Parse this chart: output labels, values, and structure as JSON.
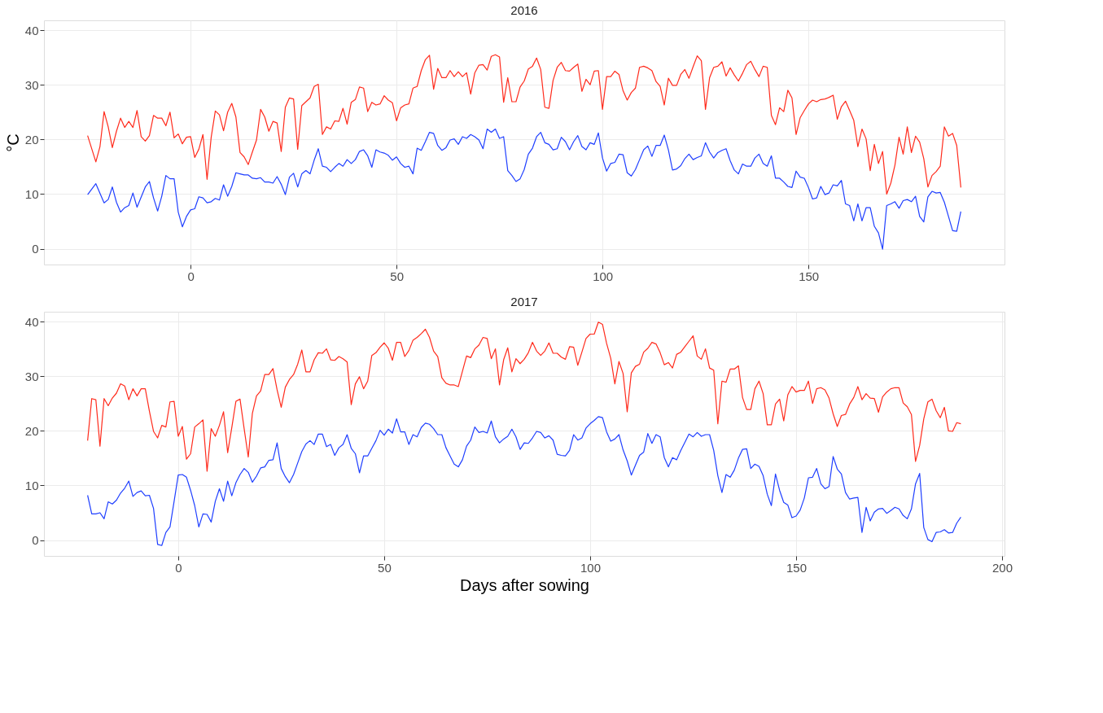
{
  "chart_data": [
    {
      "type": "line",
      "title": "2016",
      "ylabel": "°C",
      "xlim": [
        -35.6,
        197.6
      ],
      "xticks": [
        0,
        50,
        100,
        150
      ],
      "ylim": [
        -2.9,
        41.8
      ],
      "yticks": [
        0,
        10,
        20,
        30,
        40
      ],
      "grid": true,
      "series": [
        {
          "color": "#ff2b1c",
          "x": [
            -25,
            -23,
            -22,
            -21,
            -20,
            -19,
            -18,
            -17,
            -16,
            -15,
            -14,
            -13,
            -12,
            -11,
            -10,
            -9,
            -8,
            -7,
            -6,
            -5,
            -4,
            -3,
            -2,
            -1,
            0,
            1,
            2,
            3,
            4,
            5,
            6,
            7,
            8,
            9,
            10,
            11,
            12,
            13,
            14,
            15,
            16,
            17,
            18,
            19,
            20,
            21,
            22,
            23,
            24,
            25,
            26,
            27,
            28,
            29,
            30,
            31,
            32,
            33,
            34,
            35,
            36,
            37,
            38,
            39,
            40,
            41,
            42,
            43,
            44,
            45,
            46,
            47,
            48,
            49,
            50,
            51,
            52,
            53,
            54,
            55,
            56,
            57,
            58,
            59,
            60,
            61,
            62,
            63,
            64,
            65,
            66,
            67,
            68,
            69,
            70,
            71,
            72,
            73,
            74,
            75,
            76,
            77,
            78,
            79,
            80,
            81,
            82,
            83,
            84,
            85,
            86,
            87,
            88,
            89,
            90,
            91,
            92,
            93,
            94,
            95,
            96,
            97,
            98,
            99,
            100,
            101,
            102,
            103,
            104,
            105,
            106,
            107,
            108,
            109,
            110,
            111,
            112,
            113,
            114,
            115,
            116,
            117,
            118,
            119,
            120,
            121,
            122,
            123,
            124,
            125,
            126,
            127,
            128,
            129,
            130,
            131,
            132,
            133,
            134,
            135,
            136,
            137,
            138,
            139,
            140,
            141,
            142,
            143,
            144,
            145,
            146,
            147,
            148,
            149,
            150,
            151,
            152,
            153,
            154,
            155,
            156,
            157,
            158,
            159,
            160,
            161,
            162,
            163,
            164,
            165,
            166,
            167,
            168,
            169,
            170,
            171,
            172,
            173,
            174,
            175,
            176,
            177,
            178,
            179,
            180,
            181,
            182,
            183,
            184,
            185,
            186,
            187
          ],
          "values": [
            20.7,
            15.9,
            18.7,
            25.1,
            22.3,
            18.5,
            21.5,
            23.9,
            22.2,
            23.3,
            22.2,
            25.3,
            20.5,
            19.7,
            20.7,
            24.4,
            23.9,
            23.9,
            22.5,
            25.0,
            20.3,
            21.0,
            19.2,
            20.4,
            20.5,
            16.7,
            18.2,
            20.9,
            12.7,
            20.4,
            25.2,
            24.5,
            21.6,
            25.0,
            26.6,
            24.1,
            17.6,
            16.8,
            15.4,
            17.7,
            19.9,
            25.5,
            24.1,
            21.5,
            23.3,
            23.0,
            17.8,
            25.9,
            27.6,
            27.4,
            18.2,
            26.2,
            26.9,
            27.6,
            29.7,
            30.1,
            20.9,
            22.3,
            21.9,
            23.4,
            23.3,
            25.7,
            22.8,
            26.8,
            27.3,
            29.6,
            29.4,
            25.1,
            26.8,
            26.3,
            26.5,
            28.0,
            27.2,
            26.7,
            23.4,
            25.8,
            26.3,
            26.5,
            29.4,
            29.7,
            32.6,
            34.6,
            35.4,
            29.2,
            33.0,
            31.3,
            31.3,
            32.6,
            31.5,
            32.4,
            31.5,
            32.2,
            28.3,
            32.2,
            33.6,
            33.7,
            32.7,
            35.2,
            35.5,
            35.1,
            26.8,
            31.3,
            26.9,
            26.9,
            29.6,
            30.7,
            32.9,
            33.4,
            34.9,
            32.8,
            25.9,
            25.7,
            30.8,
            33.2,
            34.1,
            32.6,
            32.5,
            33.2,
            33.8,
            28.8,
            31.0,
            30.0,
            32.5,
            32.6,
            25.5,
            31.5,
            31.5,
            32.5,
            31.9,
            28.9,
            27.2,
            28.6,
            29.4,
            33.2,
            33.4,
            33.1,
            32.6,
            30.6,
            29.7,
            26.3,
            31.2,
            29.9,
            29.9,
            31.9,
            32.8,
            31.2,
            33.3,
            35.3,
            34.4,
            25.5,
            31.3,
            33.2,
            33.4,
            34.2,
            31.6,
            33.1,
            31.8,
            30.7,
            32.1,
            33.7,
            34.3,
            32.8,
            31.5,
            33.4,
            33.2,
            24.4,
            22.7,
            25.8,
            25.1,
            29.0,
            27.6,
            20.9,
            24.0,
            25.3,
            26.5,
            27.2,
            26.9,
            27.3,
            27.4,
            27.7,
            28.1,
            23.7,
            26.0,
            27.0,
            25.3,
            23.5,
            18.7,
            21.9,
            20.1,
            14.3,
            19.1,
            15.6,
            17.8,
            10.0,
            12.0,
            15.3,
            20.4,
            17.3,
            22.3,
            17.6,
            20.6,
            19.5,
            16.5,
            11.3,
            13.4,
            14.1,
            15.1,
            22.3,
            20.6,
            21.1,
            18.9,
            11.2
          ]
        },
        {
          "color": "#1f3fff",
          "x": [
            -25,
            -23,
            -21,
            -20,
            -19,
            -18,
            -17,
            -16,
            -15,
            -14,
            -13,
            -11,
            -10,
            -9,
            -8,
            -7,
            -6,
            -5,
            -4,
            -3,
            -2,
            -1,
            0,
            1,
            2,
            3,
            4,
            5,
            6,
            7,
            8,
            9,
            10,
            11,
            12,
            13,
            14,
            15,
            16,
            17,
            18,
            19,
            20,
            21,
            22,
            23,
            24,
            25,
            26,
            27,
            28,
            29,
            30,
            31,
            32,
            33,
            34,
            35,
            36,
            37,
            38,
            39,
            40,
            41,
            42,
            43,
            44,
            45,
            46,
            47,
            48,
            49,
            50,
            51,
            52,
            53,
            54,
            55,
            56,
            57,
            58,
            59,
            60,
            61,
            62,
            63,
            64,
            65,
            66,
            67,
            68,
            69,
            70,
            71,
            72,
            73,
            74,
            75,
            76,
            77,
            78,
            79,
            80,
            81,
            82,
            83,
            84,
            85,
            86,
            87,
            88,
            89,
            90,
            91,
            92,
            93,
            94,
            95,
            96,
            97,
            98,
            99,
            100,
            101,
            102,
            103,
            104,
            105,
            106,
            107,
            108,
            109,
            110,
            111,
            112,
            113,
            114,
            115,
            116,
            117,
            118,
            119,
            120,
            121,
            122,
            123,
            124,
            125,
            126,
            127,
            128,
            129,
            130,
            131,
            132,
            133,
            134,
            135,
            136,
            137,
            138,
            139,
            140,
            141,
            142,
            143,
            144,
            145,
            146,
            147,
            148,
            149,
            150,
            151,
            152,
            153,
            154,
            155,
            156,
            157,
            158,
            159,
            160,
            161,
            162,
            163,
            164,
            165,
            166,
            167,
            168,
            169,
            170,
            171,
            172,
            173,
            174,
            175,
            176,
            177,
            178,
            179,
            180,
            181,
            182,
            183,
            184,
            185,
            186,
            187
          ],
          "values": [
            9.9,
            11.9,
            8.4,
            9.0,
            11.3,
            8.5,
            6.7,
            7.5,
            7.9,
            10.2,
            7.6,
            11.3,
            12.3,
            9.3,
            6.9,
            9.6,
            13.4,
            12.8,
            12.8,
            6.7,
            4.0,
            5.9,
            7.1,
            7.3,
            9.5,
            9.3,
            8.4,
            8.6,
            9.2,
            8.9,
            11.7,
            9.6,
            11.4,
            13.9,
            13.7,
            13.5,
            13.5,
            12.9,
            12.8,
            13.0,
            12.2,
            12.2,
            12.0,
            13.2,
            11.8,
            9.9,
            13.1,
            13.8,
            11.3,
            13.7,
            14.3,
            13.7,
            16.2,
            18.3,
            15.1,
            14.9,
            14.1,
            14.9,
            15.6,
            15.1,
            16.3,
            15.6,
            16.3,
            17.8,
            18.1,
            17.0,
            14.9,
            18.1,
            17.7,
            17.5,
            17.1,
            16.2,
            16.8,
            15.6,
            14.9,
            15.1,
            13.7,
            18.4,
            18.0,
            19.6,
            21.3,
            21.1,
            18.9,
            18.0,
            18.5,
            19.9,
            20.1,
            19.1,
            20.5,
            20.2,
            20.9,
            20.5,
            19.9,
            18.3,
            21.9,
            21.3,
            21.9,
            20.2,
            20.5,
            14.3,
            13.4,
            12.3,
            12.8,
            14.5,
            17.3,
            18.4,
            20.5,
            21.3,
            19.4,
            19.1,
            18.1,
            18.3,
            20.4,
            19.6,
            18.1,
            19.6,
            20.7,
            18.7,
            18.1,
            19.4,
            19.1,
            21.2,
            16.6,
            14.2,
            15.6,
            15.8,
            17.3,
            17.2,
            13.9,
            13.3,
            14.5,
            16.3,
            18.1,
            18.8,
            16.9,
            18.9,
            18.9,
            20.8,
            18.1,
            14.4,
            14.6,
            15.2,
            16.5,
            17.3,
            16.3,
            16.7,
            17.0,
            19.4,
            17.7,
            16.6,
            17.6,
            18.0,
            18.3,
            16.1,
            14.4,
            13.7,
            15.5,
            15.1,
            15.1,
            16.6,
            17.3,
            15.6,
            15.1,
            17.0,
            12.9,
            12.9,
            12.2,
            11.4,
            11.2,
            14.2,
            13.1,
            12.9,
            11.2,
            9.1,
            9.3,
            11.4,
            9.9,
            10.2,
            11.7,
            11.5,
            12.5,
            8.2,
            7.9,
            5.1,
            8.2,
            5.1,
            7.5,
            7.5,
            4.1,
            2.9,
            -0.1,
            7.9,
            8.2,
            8.6,
            7.4,
            8.8,
            9.0,
            8.6,
            9.6,
            5.9,
            4.9,
            9.5,
            10.5,
            10.2,
            10.3,
            8.5,
            5.9,
            3.3,
            3.2,
            6.8
          ]
        }
      ]
    },
    {
      "type": "line",
      "title": "2017",
      "xlabel": "Days after sowing",
      "xlim": [
        -32.6,
        200.6
      ],
      "xticks": [
        0,
        50,
        100,
        150,
        200
      ],
      "ylim": [
        -2.9,
        41.8
      ],
      "yticks": [
        0,
        10,
        20,
        30,
        40
      ],
      "grid": true,
      "series": [
        {
          "color": "#ff2b1c",
          "x": [
            -22,
            -21,
            -20,
            -19,
            -18,
            -17,
            -16,
            -15,
            -14,
            -13,
            -12,
            -11,
            -10,
            -9,
            -8,
            -7,
            -6,
            -5,
            -4,
            -3,
            -2,
            -1,
            0,
            1,
            2,
            3,
            4,
            5,
            6,
            7,
            8,
            9,
            10,
            11,
            12,
            13,
            14,
            15,
            16,
            17,
            18,
            19,
            20,
            21,
            22,
            23,
            24,
            25,
            26,
            27,
            28,
            29,
            30,
            31,
            32,
            33,
            34,
            35,
            36,
            37,
            38,
            39,
            40,
            41,
            42,
            43,
            44,
            45,
            46,
            47,
            48,
            49,
            50,
            51,
            52,
            53,
            54,
            55,
            56,
            57,
            58,
            59,
            60,
            61,
            62,
            63,
            64,
            65,
            66,
            67,
            68,
            69,
            70,
            71,
            72,
            73,
            74,
            75,
            76,
            77,
            78,
            79,
            80,
            81,
            82,
            83,
            84,
            85,
            86,
            87,
            88,
            89,
            90,
            91,
            92,
            93,
            94,
            95,
            96,
            97,
            98,
            99,
            100,
            101,
            102,
            103,
            104,
            105,
            106,
            107,
            108,
            109,
            110,
            111,
            112,
            113,
            114,
            115,
            116,
            117,
            118,
            119,
            120,
            121,
            122,
            123,
            124,
            125,
            126,
            127,
            128,
            129,
            130,
            131,
            132,
            133,
            134,
            135,
            136,
            137,
            138,
            139,
            140,
            141,
            142,
            143,
            144,
            145,
            146,
            147,
            148,
            149,
            150,
            151,
            152,
            153,
            154,
            155,
            156,
            157,
            158,
            159,
            160,
            161,
            162,
            163,
            164,
            165,
            166,
            167,
            168,
            169,
            170,
            171,
            172,
            173,
            174,
            175,
            176,
            177,
            178,
            179,
            180,
            181,
            182,
            183,
            184,
            185,
            186,
            187,
            188,
            189,
            190
          ],
          "values": [
            18.2,
            25.9,
            25.7,
            17.2,
            25.9,
            24.6,
            26.0,
            26.9,
            28.6,
            28.2,
            25.7,
            27.7,
            26.4,
            27.7,
            27.7,
            23.6,
            19.9,
            18.7,
            21.0,
            20.7,
            25.3,
            25.4,
            19.0,
            20.8,
            14.8,
            15.8,
            20.7,
            21.3,
            22.0,
            12.6,
            20.4,
            19.0,
            21.0,
            23.5,
            16.0,
            20.6,
            25.4,
            25.8,
            20.4,
            15.2,
            23.2,
            26.4,
            27.3,
            30.3,
            30.3,
            31.4,
            27.5,
            24.3,
            28.0,
            29.4,
            30.3,
            32.2,
            34.8,
            30.8,
            30.8,
            33.0,
            34.3,
            34.2,
            35.0,
            33.0,
            32.9,
            33.6,
            33.2,
            32.6,
            24.8,
            28.6,
            29.9,
            27.7,
            29.1,
            33.8,
            34.3,
            35.3,
            36.1,
            35.1,
            32.9,
            36.2,
            36.2,
            33.6,
            34.7,
            36.6,
            37.1,
            37.8,
            38.6,
            37.1,
            34.6,
            33.6,
            29.7,
            28.7,
            28.4,
            28.4,
            28.1,
            30.9,
            33.7,
            33.4,
            35.0,
            35.7,
            37.1,
            36.9,
            33.2,
            35.0,
            28.4,
            33.0,
            35.2,
            30.8,
            33.2,
            32.3,
            33.1,
            34.3,
            36.2,
            34.6,
            33.8,
            34.6,
            36.1,
            34.2,
            34.2,
            33.5,
            33.1,
            35.4,
            35.3,
            32.0,
            34.4,
            36.9,
            37.7,
            37.7,
            39.9,
            39.5,
            36.0,
            33.3,
            28.6,
            32.7,
            30.5,
            23.5,
            30.6,
            31.8,
            32.2,
            34.4,
            35.1,
            36.2,
            35.9,
            34.3,
            32.1,
            32.5,
            31.5,
            34.0,
            34.4,
            35.4,
            36.4,
            37.4,
            33.7,
            33.1,
            35.0,
            31.5,
            31.1,
            21.3,
            29.1,
            28.9,
            31.3,
            31.3,
            31.9,
            26.1,
            23.9,
            23.9,
            27.7,
            29.1,
            26.8,
            21.1,
            21.1,
            24.9,
            25.8,
            21.8,
            26.6,
            28.1,
            27.1,
            27.4,
            27.4,
            29.1,
            25.0,
            27.7,
            27.9,
            27.5,
            26.0,
            23.1,
            20.8,
            22.8,
            23.0,
            24.9,
            26.1,
            28.1,
            25.7,
            26.8,
            26.0,
            25.9,
            23.4,
            26.2,
            27.1,
            27.7,
            27.9,
            27.9,
            25.1,
            24.4,
            23.0,
            14.4,
            17.3,
            22.2,
            25.3,
            25.8,
            23.7,
            22.4,
            24.3,
            20.0,
            19.9,
            21.5,
            21.3
          ]
        },
        {
          "color": "#1f3fff",
          "x": [
            -22,
            -21,
            -20,
            -19,
            -18,
            -17,
            -16,
            -15,
            -14,
            -13,
            -12,
            -11,
            -10,
            -9,
            -8,
            -7,
            -6,
            -5,
            -4,
            -3,
            -2,
            -1,
            0,
            1,
            2,
            3,
            4,
            5,
            6,
            7,
            8,
            9,
            10,
            11,
            12,
            13,
            14,
            15,
            16,
            17,
            18,
            19,
            20,
            21,
            22,
            23,
            24,
            25,
            26,
            27,
            28,
            29,
            30,
            31,
            32,
            33,
            34,
            35,
            36,
            37,
            38,
            39,
            40,
            41,
            42,
            43,
            44,
            45,
            46,
            47,
            48,
            49,
            50,
            51,
            52,
            53,
            54,
            55,
            56,
            57,
            58,
            59,
            60,
            61,
            62,
            63,
            64,
            65,
            66,
            67,
            68,
            69,
            70,
            71,
            72,
            73,
            74,
            75,
            76,
            77,
            78,
            79,
            80,
            81,
            82,
            83,
            84,
            85,
            86,
            87,
            88,
            89,
            90,
            91,
            92,
            93,
            94,
            95,
            96,
            97,
            98,
            99,
            100,
            101,
            102,
            103,
            104,
            105,
            106,
            107,
            108,
            109,
            110,
            111,
            112,
            113,
            114,
            115,
            116,
            117,
            118,
            119,
            120,
            121,
            122,
            123,
            124,
            125,
            126,
            127,
            128,
            129,
            130,
            131,
            132,
            133,
            134,
            135,
            136,
            137,
            138,
            139,
            140,
            141,
            142,
            143,
            144,
            145,
            146,
            147,
            148,
            149,
            150,
            151,
            152,
            153,
            154,
            155,
            156,
            157,
            158,
            159,
            160,
            161,
            162,
            163,
            164,
            165,
            166,
            167,
            168,
            169,
            170,
            171,
            172,
            173,
            174,
            175,
            176,
            177,
            178,
            179,
            180,
            181,
            182,
            183,
            184,
            185,
            186,
            187,
            188,
            189,
            190
          ],
          "values": [
            8.2,
            4.8,
            4.8,
            5.0,
            3.9,
            7.0,
            6.6,
            7.3,
            8.6,
            9.5,
            10.8,
            8.0,
            8.7,
            9.0,
            8.1,
            8.2,
            5.8,
            -0.8,
            -1.0,
            1.4,
            2.4,
            7.1,
            11.9,
            12.0,
            11.5,
            9.1,
            6.3,
            2.4,
            4.8,
            4.7,
            3.3,
            7.1,
            9.4,
            7.1,
            10.8,
            8.1,
            10.5,
            12.0,
            13.1,
            12.4,
            10.6,
            11.7,
            13.2,
            13.4,
            14.6,
            14.7,
            17.8,
            13.1,
            11.6,
            10.5,
            12.0,
            14.1,
            16.2,
            17.6,
            18.2,
            17.5,
            19.4,
            19.4,
            17.1,
            17.5,
            15.5,
            16.9,
            17.5,
            19.3,
            16.8,
            15.8,
            12.3,
            15.4,
            15.4,
            16.8,
            18.2,
            20.1,
            19.2,
            20.3,
            19.6,
            22.2,
            19.8,
            19.8,
            17.5,
            19.3,
            18.9,
            20.6,
            21.4,
            21.2,
            20.4,
            19.3,
            19.3,
            16.9,
            15.4,
            13.9,
            13.4,
            14.7,
            17.2,
            18.3,
            20.7,
            19.7,
            19.9,
            19.6,
            21.8,
            18.9,
            17.8,
            18.5,
            19.0,
            20.3,
            18.9,
            16.6,
            17.8,
            17.7,
            18.7,
            19.9,
            19.7,
            18.7,
            19.1,
            18.3,
            15.7,
            15.5,
            15.4,
            16.4,
            19.3,
            18.3,
            18.7,
            20.5,
            21.3,
            21.9,
            22.6,
            22.4,
            19.8,
            18.1,
            18.5,
            19.3,
            16.5,
            14.5,
            11.9,
            13.7,
            15.5,
            16.1,
            19.5,
            17.7,
            19.3,
            18.9,
            15.1,
            13.4,
            15.1,
            14.7,
            16.4,
            17.9,
            19.4,
            18.9,
            19.7,
            19.0,
            19.3,
            19.3,
            16.4,
            11.8,
            8.7,
            12.0,
            11.5,
            12.8,
            15.0,
            16.6,
            16.7,
            13.1,
            13.9,
            13.5,
            11.8,
            8.4,
            6.3,
            12.1,
            9.1,
            6.9,
            6.4,
            4.1,
            4.4,
            5.5,
            7.7,
            11.4,
            11.5,
            13.1,
            10.3,
            9.4,
            9.8,
            15.3,
            13.0,
            12.1,
            8.7,
            7.5,
            7.7,
            7.8,
            1.4,
            6.0,
            3.5,
            5.1,
            5.7,
            5.8,
            4.9,
            5.4,
            6.0,
            5.7,
            4.5,
            3.9,
            5.7,
            10.3,
            12.2,
            2.3,
            0.1,
            -0.3,
            1.4,
            1.5,
            1.9,
            1.3,
            1.4,
            3.1,
            4.2
          ]
        }
      ]
    }
  ]
}
